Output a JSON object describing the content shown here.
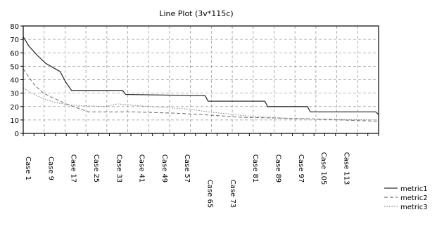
{
  "chart_data": {
    "type": "line",
    "title": "Line Plot (3v*115c)",
    "xlabel": "",
    "ylabel": "",
    "ylim": [
      0,
      80
    ],
    "yticks": [
      0,
      10,
      20,
      30,
      40,
      50,
      60,
      70,
      80
    ],
    "x_tick_labels": [
      "Case 1",
      "Case 9",
      "Case 17",
      "Case 25",
      "Case 33",
      "Case 41",
      "Case 49",
      "Case 57",
      "Case 65",
      "Case 73",
      "Case 81",
      "Case 89",
      "Case 97",
      "Case 105",
      "Case 113"
    ],
    "x_count": 115,
    "grid": true,
    "legend_position": "right",
    "series": [
      {
        "name": "metric1",
        "style": "solid",
        "points": [
          [
            1,
            72
          ],
          [
            3,
            65
          ],
          [
            6,
            58
          ],
          [
            9,
            52
          ],
          [
            14,
            46
          ],
          [
            16,
            38
          ],
          [
            18,
            32
          ],
          [
            36,
            32
          ],
          [
            37,
            29
          ],
          [
            65,
            28
          ],
          [
            66,
            24
          ],
          [
            86,
            24
          ],
          [
            87,
            20
          ],
          [
            101,
            20
          ],
          [
            102,
            16
          ],
          [
            125,
            16
          ],
          [
            126,
            14
          ]
        ]
      },
      {
        "name": "metric2",
        "style": "dashed",
        "points": [
          [
            1,
            48
          ],
          [
            3,
            42
          ],
          [
            5,
            36
          ],
          [
            8,
            30
          ],
          [
            12,
            26
          ],
          [
            16,
            22
          ],
          [
            20,
            19
          ],
          [
            24,
            16
          ],
          [
            40,
            16
          ],
          [
            55,
            15
          ],
          [
            64,
            14
          ],
          [
            78,
            12
          ],
          [
            100,
            11
          ],
          [
            126,
            9
          ]
        ]
      },
      {
        "name": "metric3",
        "style": "dotted",
        "points": [
          [
            1,
            34
          ],
          [
            4,
            30
          ],
          [
            8,
            26
          ],
          [
            12,
            23
          ],
          [
            18,
            21
          ],
          [
            30,
            20
          ],
          [
            34,
            22
          ],
          [
            45,
            20
          ],
          [
            60,
            18
          ],
          [
            66,
            16
          ],
          [
            80,
            13
          ],
          [
            95,
            11
          ],
          [
            126,
            10
          ]
        ]
      }
    ]
  }
}
